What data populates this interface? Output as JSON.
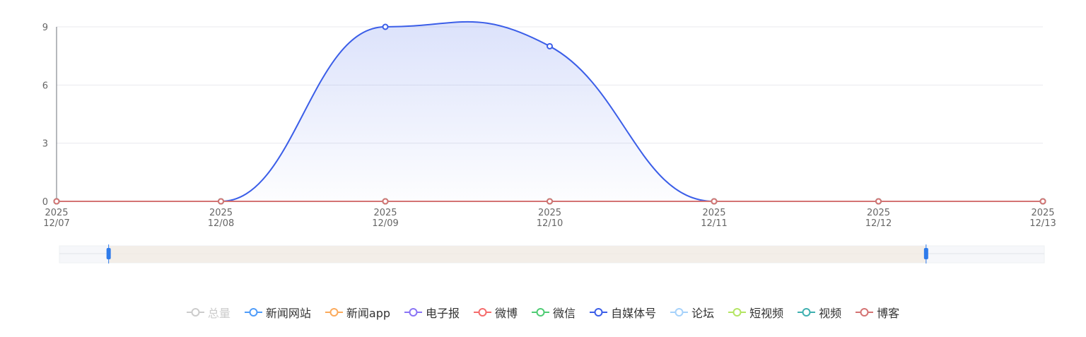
{
  "chart_data": {
    "type": "line",
    "x_years": [
      "2025",
      "2025",
      "2025",
      "2025",
      "2025",
      "2025",
      "2025"
    ],
    "x_dates": [
      "12/07",
      "12/08",
      "12/09",
      "12/10",
      "12/11",
      "12/12",
      "12/13"
    ],
    "yticks": [
      0,
      3,
      6,
      9
    ],
    "ylim": [
      0,
      9
    ],
    "grid": true,
    "legend_position": "bottom",
    "series": [
      {
        "name": "总量",
        "color": "#cccccc",
        "disabled": true,
        "values": null
      },
      {
        "name": "新闻网站",
        "color": "#4f9cf9",
        "values": [
          0,
          0,
          0,
          0,
          0,
          0,
          0
        ]
      },
      {
        "name": "新闻app",
        "color": "#fbaa5c",
        "values": [
          0,
          0,
          0,
          0,
          0,
          0,
          0
        ]
      },
      {
        "name": "电子报",
        "color": "#8a74f5",
        "values": [
          0,
          0,
          0,
          0,
          0,
          0,
          0
        ]
      },
      {
        "name": "微博",
        "color": "#f56c6c",
        "values": [
          0,
          0,
          0,
          0,
          0,
          0,
          0
        ]
      },
      {
        "name": "微信",
        "color": "#4fcc74",
        "values": [
          0,
          0,
          0,
          0,
          0,
          0,
          0
        ]
      },
      {
        "name": "自媒体号",
        "color": "#3b5ee8",
        "area": true,
        "values": [
          0,
          0,
          9,
          8,
          0,
          0,
          0
        ]
      },
      {
        "name": "论坛",
        "color": "#a6d2fb",
        "values": [
          0,
          0,
          0,
          0,
          0,
          0,
          0
        ]
      },
      {
        "name": "短视频",
        "color": "#b4e563",
        "values": [
          0,
          0,
          0,
          0,
          0,
          0,
          0
        ]
      },
      {
        "name": "视频",
        "color": "#3fb0b0",
        "values": [
          0,
          0,
          0,
          0,
          0,
          0,
          0
        ]
      },
      {
        "name": "博客",
        "color": "#d47373",
        "values": [
          0,
          0,
          0,
          0,
          0,
          0,
          0
        ]
      }
    ],
    "datazoom": {
      "start_percent": 5,
      "end_percent": 88
    }
  }
}
